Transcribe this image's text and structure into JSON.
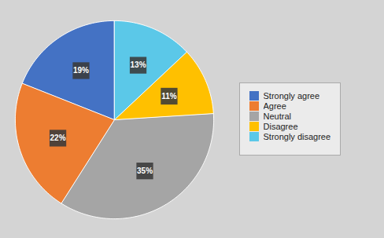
{
  "chart_data": {
    "type": "pie",
    "categories": [
      "Strongly agree",
      "Agree",
      "Neutral",
      "Disagree",
      "Strongly disagree"
    ],
    "values": [
      19,
      22,
      35,
      11,
      13
    ],
    "value_labels": [
      "19%",
      "22%",
      "35%",
      "11%",
      "13%"
    ],
    "colors": [
      "#4472C4",
      "#ED7D31",
      "#A5A5A5",
      "#FFC000",
      "#5BC8E8"
    ],
    "data_labels": true,
    "legend": "right",
    "tick_labels": false
  }
}
